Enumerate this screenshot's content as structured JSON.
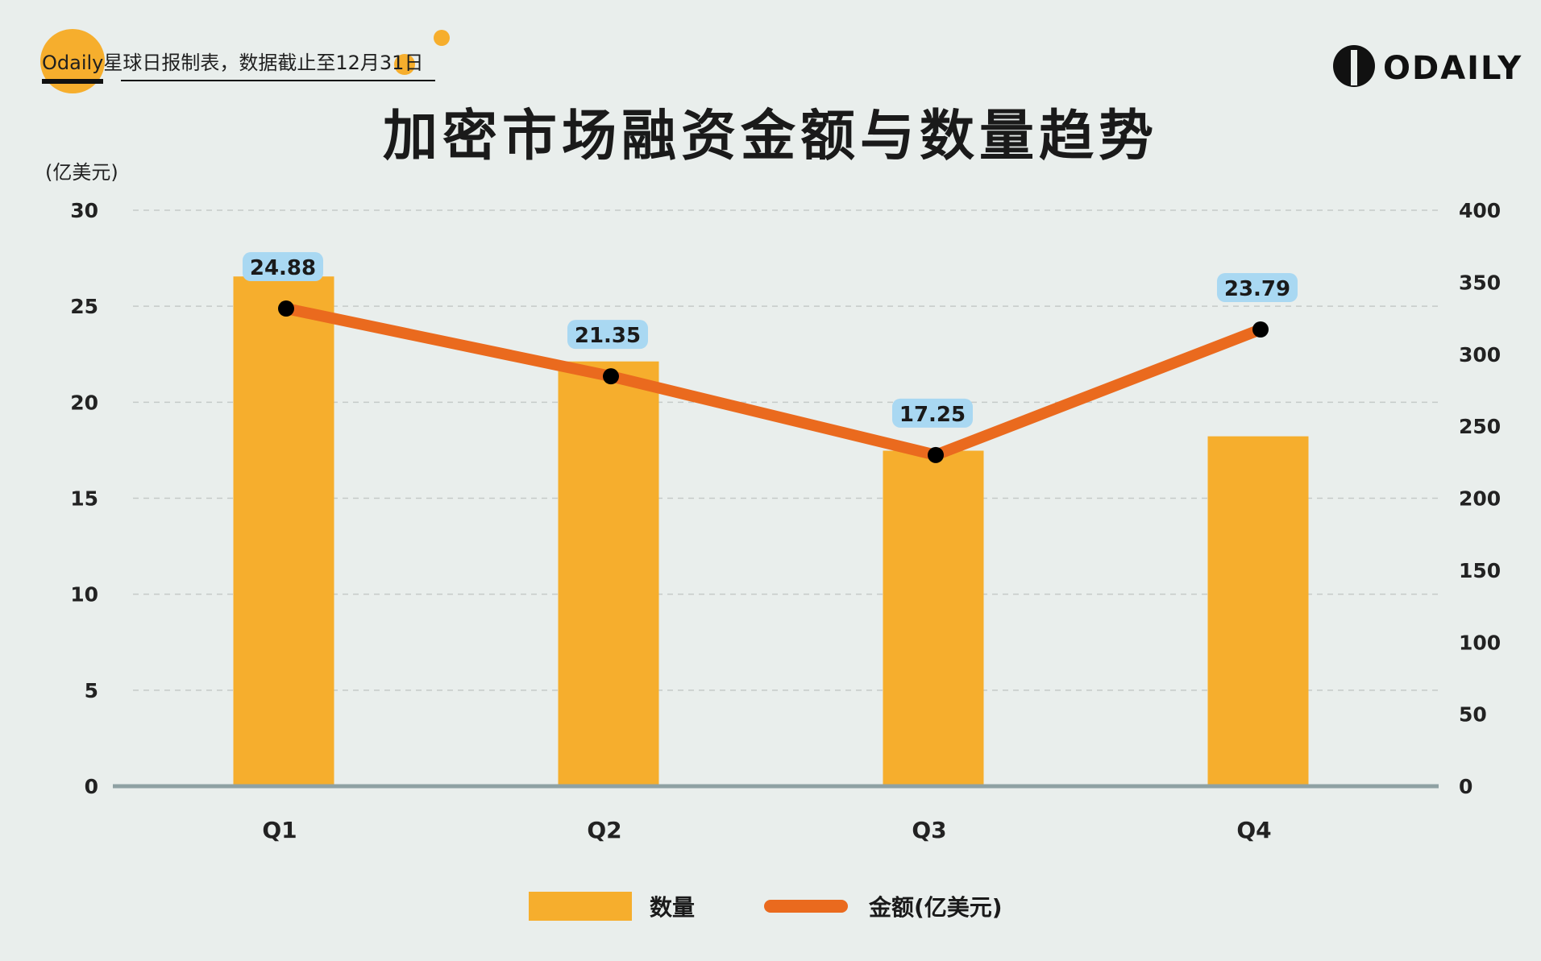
{
  "header": {
    "source_text": "Odaily星球日报制表，数据截止至12月31日",
    "brand": "ODAILY"
  },
  "chart_data": {
    "type": "bar",
    "title": "加密市场融资金额与数量趋势",
    "ylabel_left": "(亿美元)",
    "categories": [
      "Q1",
      "Q2",
      "Q3",
      "Q4"
    ],
    "left_axis": {
      "ticks": [
        0,
        5,
        10,
        15,
        20,
        25,
        30
      ],
      "range": [
        0,
        30
      ]
    },
    "right_axis": {
      "ticks": [
        0,
        50,
        100,
        150,
        200,
        250,
        300,
        350,
        400
      ],
      "range": [
        0,
        400
      ]
    },
    "series": [
      {
        "name": "数量",
        "kind": "bar",
        "axis": "right",
        "values": [
          354,
          295,
          233,
          243
        ],
        "color": "#f6ae2d"
      },
      {
        "name": "金额(亿美元)",
        "kind": "line",
        "axis": "left",
        "values": [
          24.88,
          21.35,
          17.25,
          23.79
        ],
        "labels": [
          "24.88",
          "21.35",
          "17.25",
          "23.79"
        ],
        "color": "#ea6a1e"
      }
    ],
    "grid": true,
    "legend_position": "bottom"
  }
}
